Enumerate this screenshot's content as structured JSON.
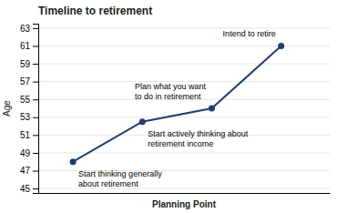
{
  "chart_data": {
    "type": "line",
    "title": "Timeline to retirement",
    "x_label": "Planning Point",
    "y_label": "Age",
    "x": [
      1,
      2,
      3,
      4
    ],
    "values": [
      48,
      52.5,
      54,
      61
    ],
    "color": "#1F3D6E",
    "marker": "circle",
    "xlim": [
      0.5,
      4.7
    ],
    "ylim": [
      44.5,
      63.5
    ],
    "yticks": [
      45,
      47,
      49,
      51,
      53,
      55,
      57,
      59,
      61,
      63
    ],
    "grid": true,
    "tick_labels": "y",
    "annotations": [
      {
        "text": "Start thinking generally\nabout retirement",
        "x": 1,
        "y": 48
      },
      {
        "text": "Start actively thinking about\nretirement income",
        "x": 2,
        "y": 52.5
      },
      {
        "text": "Plan what you want\nto do in retirement",
        "x": 3,
        "y": 54
      },
      {
        "text": "Intend to retire",
        "x": 4,
        "y": 61
      }
    ]
  }
}
